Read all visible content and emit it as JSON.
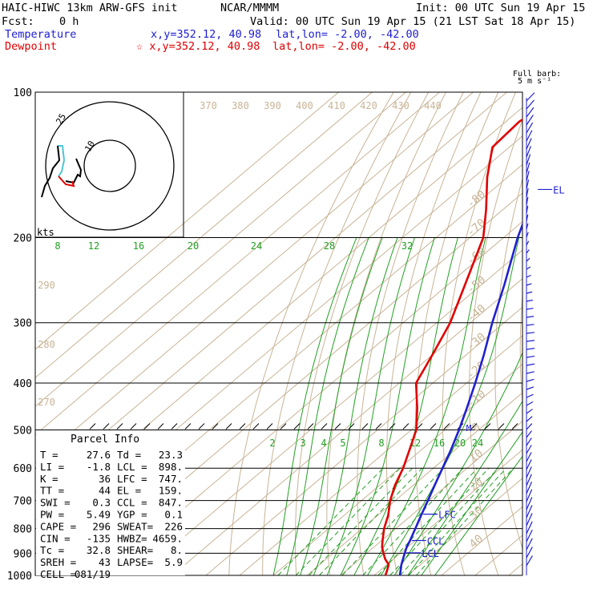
{
  "header": {
    "model": "HAIC-HIWC 13km ARW-GFS init",
    "org": "NCAR/MMMM",
    "init": "Init: 00 UTC Sun 19 Apr 15",
    "fcst_label": "Fcst:",
    "fcst_value": "0 h",
    "valid": "Valid: 00 UTC Sun 19 Apr 15 (21 LST Sat 18 Apr 15)",
    "temperature_label": "Temperature",
    "dewpoint_label": "Dewpoint",
    "temp_xy": "x,y=352.12, 40.98",
    "temp_latlon": "lat,lon= -2.00, -42.00",
    "dew_xy": "☆ x,y=352.12, 40.98",
    "dew_latlon": "lat,lon= -2.00, -42.00"
  },
  "colors": {
    "temperature": "#2020d0",
    "dewpoint": "#e00000",
    "isotherm": "#c8b496",
    "mixing_ratio": "#22a022",
    "moist_adiabat": "#22a022",
    "dry_adiabat": "#c8b496",
    "isobar": "#000000",
    "wind_barb": "#2020d0"
  },
  "barb_legend": {
    "title": "Full barb:",
    "value": "5 m s⁻¹"
  },
  "hodograph": {
    "units": "kts",
    "ring_labels": [
      "25",
      "10"
    ]
  },
  "parcel_info": {
    "title": "Parcel Info",
    "rows": [
      [
        "T  =",
        "27.6",
        "Td =",
        "23.3"
      ],
      [
        "LI =",
        "-1.8",
        "LCL =",
        "898."
      ],
      [
        "K  =",
        "36",
        "LFC =",
        "747."
      ],
      [
        "TT =",
        "44",
        "EL =",
        "159."
      ],
      [
        "SWI =",
        "0.3",
        "CCL =",
        "847."
      ],
      [
        "PW =",
        "5.49",
        "YGP =",
        "0.1"
      ],
      [
        "CAPE =",
        "296",
        "SWEAT=",
        "226"
      ],
      [
        "CIN =",
        "-135",
        "HWBZ=",
        "4659."
      ],
      [
        "Tc =",
        "32.8",
        "SHEAR=",
        "8."
      ],
      [
        "SREH =",
        "43",
        "LAPSE=",
        "5.9"
      ],
      [
        "CELL =",
        "081/19",
        "",
        ""
      ]
    ]
  },
  "chart_data": {
    "type": "line",
    "title": "",
    "chart_kind": "Skew-T log-P sounding",
    "pressure_axis": {
      "ticks": [
        100,
        200,
        300,
        400,
        500,
        600,
        700,
        800,
        900,
        1000
      ],
      "scale": "log",
      "range": [
        1000,
        100
      ]
    },
    "isotherm_labels": [
      "-80",
      "-70",
      "-60",
      "-50",
      "-40",
      "-30",
      "-20",
      "-10",
      "0",
      "10",
      "20",
      "30",
      "40"
    ],
    "theta_labels_upper": [
      "370",
      "380",
      "390",
      "400",
      "410",
      "420",
      "430",
      "440"
    ],
    "theta_labels_left": [
      "290",
      "280",
      "270"
    ],
    "mixing_ratio_labels_upper": [
      "8",
      "12",
      "16",
      "20",
      "24",
      "28",
      "32"
    ],
    "mixing_ratio_labels_lower": [
      "2",
      "3",
      "4",
      "5",
      "8",
      "12",
      "16",
      "20",
      "24"
    ],
    "series": [
      {
        "name": "Temperature",
        "pressure": [
          1000,
          975,
          950,
          925,
          900,
          875,
          850,
          800,
          750,
          700,
          650,
          600,
          550,
          500,
          450,
          400,
          350,
          300,
          250,
          200,
          175,
          150,
          130,
          115,
          100
        ],
        "temperature": [
          27.6,
          26.0,
          24.3,
          22.8,
          21.3,
          19.8,
          18.6,
          15.8,
          12.8,
          9.7,
          6.3,
          2.7,
          -1.2,
          -5.8,
          -11.2,
          -17.4,
          -24.7,
          -33.5,
          -43.3,
          -55.8,
          -62.5,
          -70.0,
          -76.0,
          -79.0,
          -80.0
        ]
      },
      {
        "name": "Dewpoint",
        "pressure": [
          1000,
          975,
          950,
          925,
          900,
          875,
          850,
          800,
          750,
          700,
          650,
          600,
          550,
          500,
          450,
          400,
          350,
          300,
          250,
          200,
          175,
          150,
          130,
          115,
          100
        ],
        "temperature": [
          23.3,
          22.0,
          20.5,
          17.5,
          15.0,
          12.5,
          10.5,
          6.5,
          3.0,
          -1.5,
          -5.5,
          -9.0,
          -13.5,
          -18.5,
          -26.0,
          -35.0,
          -40.0,
          -46.0,
          -55.0,
          -66.0,
          -75.0,
          -86.0,
          -95.0,
          -96.0,
          -92.0
        ]
      }
    ],
    "annotations": [
      {
        "label": "EL",
        "pressure": 159
      },
      {
        "label": "M",
        "pressure": 495
      },
      {
        "label": "LFC",
        "pressure": 747
      },
      {
        "label": "CCL",
        "pressure": 847
      },
      {
        "label": "LCL",
        "pressure": 898
      }
    ],
    "grid": true
  }
}
